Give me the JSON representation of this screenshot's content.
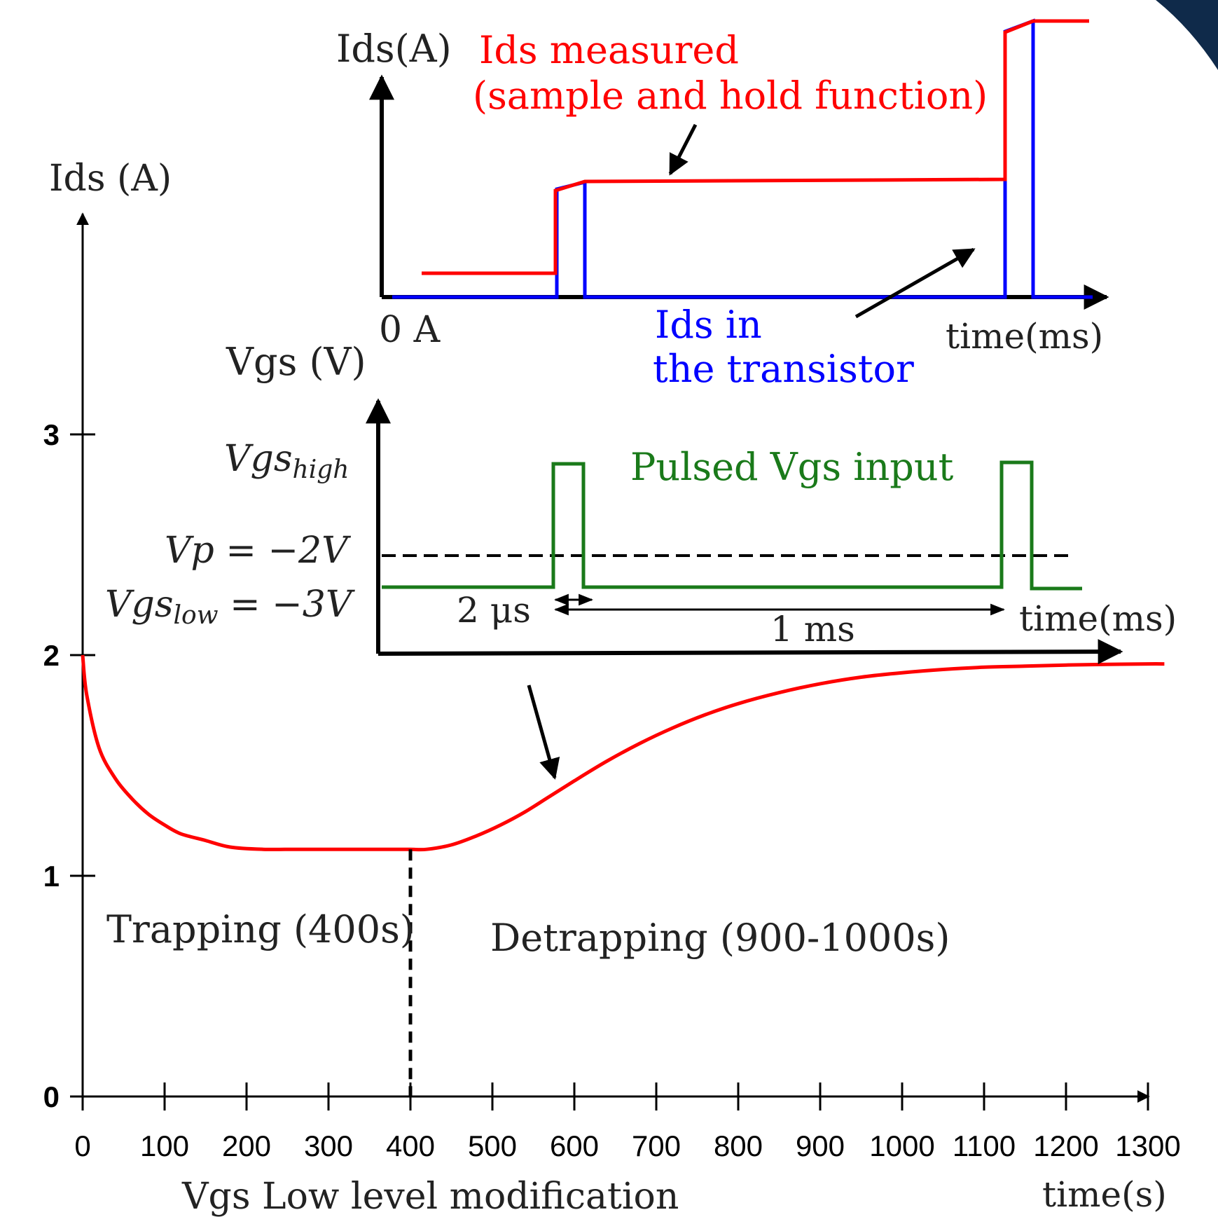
{
  "chart_data": [
    {
      "type": "line",
      "xlabel": "time(s)",
      "ylabel": "Ids (A)",
      "xlim": [
        0,
        1300
      ],
      "ylim": [
        0,
        3
      ],
      "x_ticks": [
        0,
        100,
        200,
        300,
        400,
        500,
        600,
        700,
        800,
        900,
        1000,
        1100,
        1200,
        1300
      ],
      "y_ticks": [
        0,
        1,
        2,
        3
      ],
      "x_caption": "Vgs Low level modification",
      "series": [
        {
          "color": "#ff0000",
          "x": [
            0,
            5,
            20,
            40,
            60,
            80,
            100,
            120,
            150,
            180,
            220,
            260,
            300,
            340,
            380,
            400,
            420,
            450,
            480,
            510,
            540,
            570,
            600,
            640,
            680,
            720,
            760,
            800,
            850,
            900,
            950,
            1000,
            1050,
            1100,
            1150,
            1200,
            1250,
            1300,
            1320
          ],
          "y": [
            2.0,
            1.82,
            1.58,
            1.44,
            1.35,
            1.28,
            1.23,
            1.19,
            1.16,
            1.13,
            1.12,
            1.12,
            1.12,
            1.12,
            1.12,
            1.12,
            1.12,
            1.14,
            1.18,
            1.23,
            1.29,
            1.36,
            1.43,
            1.52,
            1.6,
            1.67,
            1.73,
            1.78,
            1.83,
            1.87,
            1.9,
            1.92,
            1.935,
            1.945,
            1.95,
            1.955,
            1.958,
            1.96,
            1.96
          ]
        }
      ],
      "markers": [
        {
          "x": 400,
          "y": 1.12,
          "style": "dashed-vertical"
        }
      ],
      "annotations": [
        "Trapping (400s)",
        "Detrapping (900-1000s)"
      ]
    },
    {
      "type": "line",
      "ylabel": "Ids(A)",
      "xlabel": "time(ms)",
      "y_tick_label": "0 A",
      "series": [
        {
          "name": "Ids measured",
          "name_note": "(sample and hold function)",
          "color": "#ff0000"
        },
        {
          "name": "Ids in",
          "name_note": "the transistor",
          "color": "#0000ff"
        }
      ]
    },
    {
      "type": "line",
      "ylabel": "Vgs (V)",
      "xlabel": "time(ms)",
      "levels": {
        "high": "Vgs_high",
        "pinch": "Vp = −2V",
        "low": "Vgs_low = −3V"
      },
      "series": [
        {
          "name": "Pulsed Vgs input",
          "color": "#1a7a1a"
        }
      ],
      "dimensions": {
        "pulse_width": "2 μs",
        "period": "1 ms"
      }
    }
  ],
  "labels": {
    "main_ylabel": "Ids (A)",
    "main_xlabel": "time(s)",
    "main_caption": "Vgs Low level modification",
    "trapping": "Trapping (400s)",
    "detrapping": "Detrapping (900-1000s)",
    "top_ylabel": "Ids(A)",
    "top_xlabel": "time(ms)",
    "top_zero": "0 A",
    "measured_1": "Ids measured",
    "measured_2": "(sample and hold function)",
    "transistor_1": "Ids in",
    "transistor_2": "the transistor",
    "mid_ylabel": "Vgs (V)",
    "mid_xlabel": "time(ms)",
    "vgs_high_base": "Vgs",
    "vgs_high_sub": "high",
    "vp_label": "Vp = −2V",
    "vgs_low_base": "Vgs",
    "vgs_low_sub": "low",
    "vgs_low_val": " = −3V",
    "pulsed": "Pulsed Vgs input",
    "dim_2us": "2 μs",
    "dim_1ms": "1 ms"
  },
  "colors": {
    "red": "#ff0000",
    "blue": "#0000ff",
    "green": "#1a7a1a",
    "black": "#000000",
    "corner": "#0f2a4a"
  }
}
